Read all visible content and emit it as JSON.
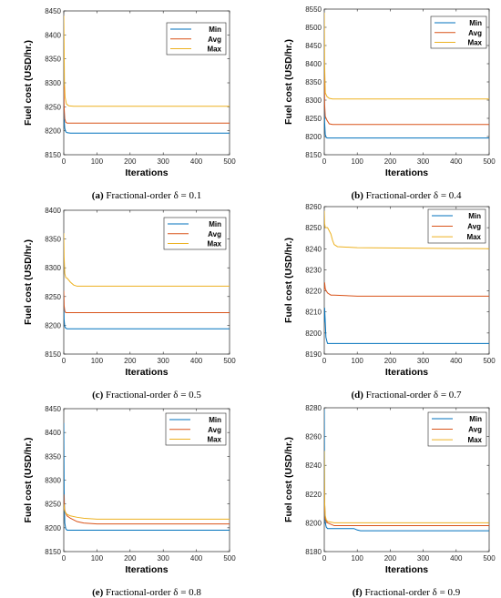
{
  "legend_labels": [
    "Min",
    "Avg",
    "Max"
  ],
  "colors": {
    "Min": "#0072BD",
    "Avg": "#D95319",
    "Max": "#EDB120"
  },
  "chart_data": [
    {
      "type": "line",
      "letter": "(a)",
      "caption": "Fractional-order δ = 0.1",
      "xlabel": "Iterations",
      "ylabel": "Fuel cost (USD/hr.)",
      "xlim": [
        0,
        500
      ],
      "ylim": [
        8150,
        8450
      ],
      "xticks": [
        0,
        100,
        200,
        300,
        400,
        500
      ],
      "yticks": [
        8150,
        8200,
        8250,
        8300,
        8350,
        8400,
        8450
      ],
      "series": [
        {
          "name": "Min",
          "x": [
            0,
            1,
            3,
            6,
            10,
            20,
            500
          ],
          "y": [
            8262,
            8225,
            8205,
            8198,
            8196,
            8195,
            8195
          ]
        },
        {
          "name": "Avg",
          "x": [
            0,
            1,
            3,
            6,
            10,
            20,
            500
          ],
          "y": [
            8295,
            8250,
            8225,
            8218,
            8216,
            8216,
            8216
          ]
        },
        {
          "name": "Max",
          "x": [
            0,
            1,
            2,
            4,
            8,
            15,
            30,
            500
          ],
          "y": [
            8440,
            8380,
            8300,
            8270,
            8256,
            8252,
            8251,
            8251
          ]
        }
      ]
    },
    {
      "type": "line",
      "letter": "(b)",
      "caption": "Fractional-order δ = 0.4",
      "xlabel": "Iterations",
      "ylabel": "Fuel cost (USD/hr.)",
      "xlim": [
        0,
        500
      ],
      "ylim": [
        8150,
        8550
      ],
      "xticks": [
        0,
        100,
        200,
        300,
        400,
        500
      ],
      "yticks": [
        8150,
        8200,
        8250,
        8300,
        8350,
        8400,
        8450,
        8500,
        8550
      ],
      "series": [
        {
          "name": "Min",
          "x": [
            0,
            1,
            3,
            6,
            10,
            500
          ],
          "y": [
            8330,
            8240,
            8205,
            8197,
            8196,
            8196
          ]
        },
        {
          "name": "Avg",
          "x": [
            0,
            1,
            3,
            8,
            15,
            25,
            500
          ],
          "y": [
            8400,
            8290,
            8255,
            8245,
            8235,
            8233,
            8233
          ]
        },
        {
          "name": "Max",
          "x": [
            0,
            1,
            3,
            8,
            15,
            25,
            500
          ],
          "y": [
            8540,
            8400,
            8320,
            8310,
            8305,
            8303,
            8303
          ]
        }
      ]
    },
    {
      "type": "line",
      "letter": "(c)",
      "caption": "Fractional-order δ = 0.5",
      "xlabel": "Iterations",
      "ylabel": "Fuel cost (USD/hr.)",
      "xlim": [
        0,
        500
      ],
      "ylim": [
        8150,
        8400
      ],
      "xticks": [
        0,
        100,
        200,
        300,
        400,
        500
      ],
      "yticks": [
        8150,
        8200,
        8250,
        8300,
        8350,
        8400
      ],
      "series": [
        {
          "name": "Min",
          "x": [
            0,
            1,
            3,
            6,
            10,
            500
          ],
          "y": [
            8255,
            8210,
            8198,
            8195,
            8194,
            8194
          ]
        },
        {
          "name": "Avg",
          "x": [
            0,
            1,
            3,
            6,
            10,
            500
          ],
          "y": [
            8260,
            8235,
            8225,
            8222,
            8222,
            8222
          ]
        },
        {
          "name": "Max",
          "x": [
            0,
            1,
            3,
            6,
            10,
            20,
            30,
            40,
            500
          ],
          "y": [
            8360,
            8320,
            8290,
            8283,
            8282,
            8275,
            8270,
            8268,
            8268
          ]
        }
      ]
    },
    {
      "type": "line",
      "letter": "(d)",
      "caption": "Fractional-order δ = 0.7",
      "xlabel": "Iterations",
      "ylabel": "Fuel cost (USD/hr.)",
      "xlim": [
        0,
        500
      ],
      "ylim": [
        8190,
        8260
      ],
      "xticks": [
        0,
        100,
        200,
        300,
        400,
        500
      ],
      "yticks": [
        8190,
        8200,
        8210,
        8220,
        8230,
        8240,
        8250,
        8260
      ],
      "series": [
        {
          "name": "Min",
          "x": [
            0,
            1,
            3,
            5,
            8,
            10,
            500
          ],
          "y": [
            8205,
            8212,
            8205,
            8198,
            8196,
            8195,
            8195
          ]
        },
        {
          "name": "Avg",
          "x": [
            0,
            1,
            3,
            6,
            10,
            20,
            30,
            100,
            500
          ],
          "y": [
            8220,
            8224,
            8221,
            8220,
            8219,
            8218,
            8218,
            8217.5,
            8217.5
          ]
        },
        {
          "name": "Max",
          "x": [
            0,
            1,
            3,
            10,
            20,
            25,
            30,
            40,
            100,
            500
          ],
          "y": [
            8258,
            8252,
            8250,
            8250,
            8247,
            8244,
            8242,
            8241,
            8240.5,
            8240
          ]
        }
      ]
    },
    {
      "type": "line",
      "letter": "(e)",
      "caption": "Fractional-order δ = 0.8",
      "xlabel": "Iterations",
      "ylabel": "Fuel cost (USD/hr.)",
      "xlim": [
        0,
        500
      ],
      "ylim": [
        8150,
        8450
      ],
      "xticks": [
        0,
        100,
        200,
        300,
        400,
        500
      ],
      "yticks": [
        8150,
        8200,
        8250,
        8300,
        8350,
        8400,
        8450
      ],
      "series": [
        {
          "name": "Min",
          "x": [
            0,
            1,
            3,
            6,
            10,
            500
          ],
          "y": [
            8420,
            8280,
            8210,
            8198,
            8195,
            8195
          ]
        },
        {
          "name": "Avg",
          "x": [
            0,
            2,
            5,
            10,
            20,
            40,
            60,
            100,
            500
          ],
          "y": [
            8270,
            8240,
            8232,
            8225,
            8220,
            8213,
            8210,
            8208,
            8208
          ]
        },
        {
          "name": "Max",
          "x": [
            0,
            2,
            5,
            10,
            20,
            40,
            60,
            100,
            500
          ],
          "y": [
            8250,
            8238,
            8232,
            8228,
            8225,
            8222,
            8220,
            8218,
            8218
          ]
        }
      ]
    },
    {
      "type": "line",
      "letter": "(f)",
      "caption": "Fractional-order δ = 0.9",
      "xlabel": "Iterations",
      "ylabel": "Fuel cost (USD/hr.)",
      "xlim": [
        0,
        500
      ],
      "ylim": [
        8180,
        8280
      ],
      "xticks": [
        0,
        100,
        200,
        300,
        400,
        500
      ],
      "yticks": [
        8180,
        8200,
        8220,
        8240,
        8260,
        8280
      ],
      "series": [
        {
          "name": "Min",
          "x": [
            0,
            1,
            3,
            6,
            10,
            20,
            90,
            100,
            110,
            500
          ],
          "y": [
            8279,
            8215,
            8200,
            8197,
            8196,
            8196,
            8196,
            8195,
            8194.5,
            8194.5
          ]
        },
        {
          "name": "Avg",
          "x": [
            0,
            1,
            3,
            6,
            10,
            30,
            500
          ],
          "y": [
            8230,
            8210,
            8203,
            8201,
            8200,
            8198,
            8198
          ]
        },
        {
          "name": "Max",
          "x": [
            0,
            1,
            3,
            6,
            10,
            30,
            500
          ],
          "y": [
            8250,
            8215,
            8205,
            8202,
            8201,
            8200,
            8200
          ]
        }
      ]
    }
  ]
}
